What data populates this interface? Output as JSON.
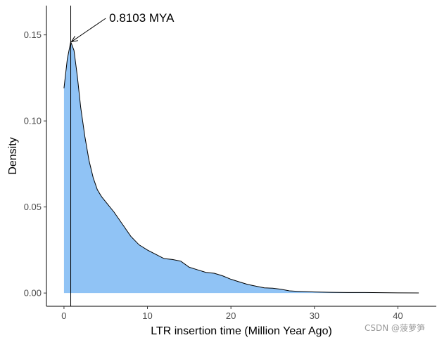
{
  "chart_data": {
    "type": "area",
    "title": "",
    "xlabel": "LTR insertion time (Million Year Ago)",
    "ylabel": "Density",
    "xlim": [
      -2.1,
      44.6
    ],
    "ylim": [
      -0.0077,
      0.167
    ],
    "x_ticks": [
      0,
      10,
      20,
      30,
      40
    ],
    "x_tick_labels": [
      "0",
      "10",
      "20",
      "30",
      "40"
    ],
    "y_ticks": [
      0.0,
      0.05,
      0.1,
      0.15
    ],
    "y_tick_labels": [
      "0.00",
      "0.05",
      "0.10",
      "0.15"
    ],
    "grid": false,
    "fill_color": "#90c3f5",
    "line_color": "#000000",
    "series": [
      {
        "name": "density",
        "x": [
          0,
          0.4,
          0.8103,
          1.2,
          1.6,
          2,
          2.5,
          3,
          3.5,
          4,
          4.5,
          5,
          6,
          7,
          8,
          9,
          10,
          11,
          12,
          13,
          14,
          15,
          16,
          17,
          18,
          19,
          20,
          21,
          22,
          23,
          24,
          25,
          26,
          27,
          28,
          29,
          30,
          32,
          34,
          36,
          38,
          40,
          42.5
        ],
        "y": [
          0.119,
          0.136,
          0.146,
          0.141,
          0.126,
          0.108,
          0.091,
          0.077,
          0.067,
          0.06,
          0.056,
          0.053,
          0.047,
          0.04,
          0.033,
          0.028,
          0.025,
          0.0225,
          0.02,
          0.0195,
          0.0185,
          0.015,
          0.0135,
          0.012,
          0.0115,
          0.01,
          0.008,
          0.0065,
          0.005,
          0.004,
          0.003,
          0.0028,
          0.0022,
          0.0013,
          0.001,
          0.0008,
          0.0006,
          0.0004,
          0.0003,
          0.0003,
          0.0002,
          0.0001,
          5e-05
        ]
      }
    ],
    "annotations": [
      {
        "text": "0.8103 MYA",
        "x": 0.8103,
        "y": 0.146,
        "type": "vline_arrow",
        "label_x": 5.5,
        "label_y": 0.16
      }
    ]
  },
  "watermark": "CSDN @菠萝笋"
}
